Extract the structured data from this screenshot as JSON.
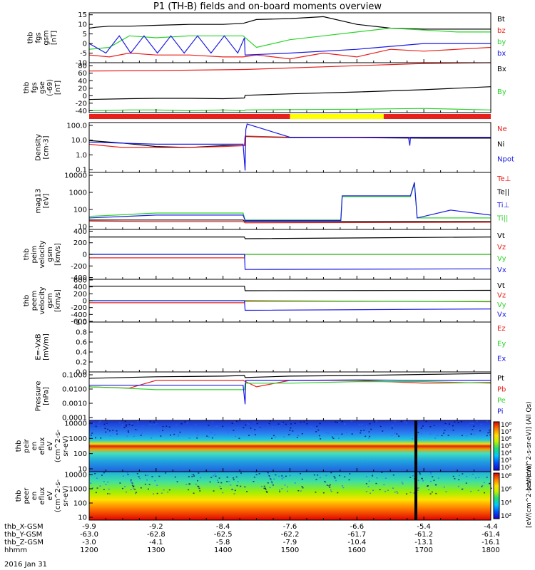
{
  "title": "P1 (TH-B) fields and on-board moments overview",
  "date_label": "2016 Jan 31",
  "colors": {
    "black": "#000000",
    "red": "#e8201c",
    "green": "#2ad32a",
    "blue": "#1a1ae6",
    "yellow": "#ffff00"
  },
  "chart_data": [
    {
      "type": "line",
      "panel": "fgs_gsm",
      "ylabel": [
        "thb",
        "fgs",
        "gsm",
        "[nT]"
      ],
      "yticks": [
        15,
        10,
        5,
        0,
        -5,
        -10
      ],
      "ylim": [
        -10,
        16
      ],
      "grid": false,
      "legend": [
        {
          "label": "Bt",
          "color": "black"
        },
        {
          "label": "bz",
          "color": "red"
        },
        {
          "label": "by",
          "color": "green"
        },
        {
          "label": "bx",
          "color": "blue"
        }
      ],
      "series": [
        {
          "name": "Bt",
          "color": "black",
          "x": [
            1200,
            1210,
            1230,
            1260,
            1300,
            1350,
            1400,
            1430,
            1450,
            1500,
            1550,
            1600,
            1650,
            1700,
            1750,
            1800
          ],
          "y": [
            8,
            8.5,
            9,
            9,
            9.5,
            10,
            10,
            10.5,
            12.5,
            13,
            14,
            10,
            8,
            7.5,
            7.5,
            7.5
          ]
        },
        {
          "name": "bz",
          "color": "red",
          "x": [
            1200,
            1230,
            1260,
            1300,
            1350,
            1400,
            1430,
            1450,
            1500,
            1550,
            1600,
            1650,
            1700,
            1750,
            1800
          ],
          "y": [
            -6,
            -7,
            -5,
            -6,
            -6,
            -7,
            -7,
            -6,
            -8,
            -5,
            -7,
            -3,
            -4,
            -3,
            -2
          ]
        },
        {
          "name": "by",
          "color": "green",
          "x": [
            1200,
            1230,
            1260,
            1300,
            1350,
            1400,
            1430,
            1450,
            1500,
            1550,
            1600,
            1650,
            1700,
            1750,
            1800
          ],
          "y": [
            -3,
            -2,
            4,
            3,
            4,
            4,
            4,
            -2,
            2,
            4,
            6,
            8,
            7,
            6,
            6
          ]
        },
        {
          "name": "bx",
          "color": "blue",
          "x": [
            1200,
            1225,
            1245,
            1262,
            1282,
            1302,
            1322,
            1342,
            1362,
            1382,
            1402,
            1422,
            1432,
            1433,
            1500,
            1600,
            1700,
            1800
          ],
          "y": [
            0,
            -5,
            4,
            -5,
            4,
            -5,
            4,
            -5,
            4,
            -5,
            4,
            -5,
            3,
            -6,
            -5,
            -3,
            0,
            0
          ]
        }
      ]
    },
    {
      "type": "line",
      "panel": "fgs_gse",
      "ylabel": [
        "thb",
        "fgs",
        "gse",
        "(-69)",
        "[nT]"
      ],
      "yticks": [
        80,
        60,
        40,
        20,
        0,
        -20,
        -40
      ],
      "ylim": [
        -45,
        88
      ],
      "grid": false,
      "legend": [
        {
          "label": "Bx",
          "color": "black"
        },
        {
          "label": "By",
          "color": "green"
        }
      ],
      "series": [
        {
          "name": "red",
          "color": "red",
          "x": [
            1200,
            1300,
            1433,
            1500,
            1600,
            1700,
            1800
          ],
          "y": [
            66,
            67,
            70,
            74,
            80,
            86,
            88
          ]
        },
        {
          "name": "Bx",
          "color": "black",
          "x": [
            1200,
            1260,
            1300,
            1350,
            1400,
            1432,
            1433,
            1500,
            1600,
            1700,
            1800
          ],
          "y": [
            -10,
            -8,
            -7,
            -7,
            -8,
            -6,
            1,
            5,
            10,
            16,
            24
          ]
        },
        {
          "name": "By",
          "color": "green",
          "x": [
            1200,
            1260,
            1300,
            1350,
            1400,
            1432,
            1433,
            1500,
            1600,
            1700,
            1800
          ],
          "y": [
            -40,
            -38,
            -38,
            -40,
            -38,
            -40,
            -38,
            -37,
            -36,
            -34,
            -38
          ]
        }
      ]
    },
    {
      "type": "line",
      "panel": "density",
      "ylabel": [
        "Density",
        "[cm-3]"
      ],
      "yticks": [
        "100.0",
        "10.0",
        "1.0",
        "0.1"
      ],
      "ylim": [
        0.06,
        150
      ],
      "log": true,
      "legend": [
        {
          "label": "Ne",
          "color": "red"
        },
        {
          "label": "Ni",
          "color": "black"
        },
        {
          "label": "Npot",
          "color": "blue"
        }
      ],
      "series": [
        {
          "name": "Ni",
          "color": "black",
          "x": [
            1200,
            1250,
            1300,
            1350,
            1400,
            1432,
            1433,
            1500,
            1600,
            1700,
            1800
          ],
          "y": [
            9,
            6,
            3.5,
            3,
            4,
            4,
            17,
            14,
            14,
            13,
            13
          ]
        },
        {
          "name": "Ne",
          "color": "red",
          "x": [
            1200,
            1250,
            1300,
            1350,
            1400,
            1432,
            1433,
            1500,
            1600,
            1700,
            1800
          ],
          "y": [
            5,
            3,
            3,
            3,
            3.5,
            4,
            18,
            15,
            14,
            15,
            15
          ]
        },
        {
          "name": "Npot",
          "color": "blue",
          "x": [
            1200,
            1300,
            1430,
            1433,
            1434,
            1436,
            1500,
            1600,
            1677,
            1679,
            1680,
            1800
          ],
          "y": [
            7,
            5,
            5,
            0.08,
            50,
            120,
            15,
            15,
            15,
            4,
            15,
            15
          ]
        }
      ]
    },
    {
      "type": "line",
      "panel": "temperature",
      "ylabel": [
        "mag13",
        "[eV]"
      ],
      "yticks": [
        "10000",
        "1000",
        "100",
        "10"
      ],
      "ylim": [
        4,
        12000
      ],
      "log": true,
      "legend": [
        {
          "label": "Te⊥",
          "color": "red"
        },
        {
          "label": "Te||",
          "color": "black"
        },
        {
          "label": "Ti⊥",
          "color": "blue"
        },
        {
          "label": "Ti||",
          "color": "green"
        }
      ],
      "series": [
        {
          "name": "Ti||",
          "color": "green",
          "x": [
            1200,
            1300,
            1430,
            1433,
            1500,
            1576,
            1578,
            1600,
            1680,
            1686,
            1690,
            1700,
            1800
          ],
          "y": [
            25,
            40,
            40,
            15,
            15,
            15,
            400,
            400,
            400,
            2500,
            20,
            20,
            20
          ]
        },
        {
          "name": "Ti⊥",
          "color": "blue",
          "x": [
            1200,
            1300,
            1430,
            1433,
            1500,
            1576,
            1578,
            1600,
            1680,
            1686,
            1690,
            1740,
            1800
          ],
          "y": [
            20,
            30,
            30,
            14,
            14,
            14,
            450,
            450,
            450,
            3000,
            20,
            60,
            30
          ]
        },
        {
          "name": "Te||",
          "color": "black",
          "x": [
            1200,
            1300,
            1430,
            1433,
            1800
          ],
          "y": [
            15,
            15,
            15,
            12,
            12
          ]
        },
        {
          "name": "Te⊥",
          "color": "red",
          "x": [
            1200,
            1300,
            1430,
            1433,
            1800
          ],
          "y": [
            13,
            12,
            12,
            10,
            11
          ]
        }
      ]
    },
    {
      "type": "line",
      "panel": "peim_velocity",
      "ylabel": [
        "thb",
        "peim",
        "velocity",
        "gsm",
        "[km/s]"
      ],
      "yticks": [
        400,
        200,
        0,
        -200,
        -400
      ],
      "ylim": [
        -430,
        430
      ],
      "grid": false,
      "legend": [
        {
          "label": "Vt",
          "color": "black"
        },
        {
          "label": "Vz",
          "color": "red"
        },
        {
          "label": "Vy",
          "color": "green"
        },
        {
          "label": "Vx",
          "color": "blue"
        }
      ],
      "series": [
        {
          "name": "Vt",
          "color": "black",
          "x": [
            1200,
            1432,
            1433,
            1800
          ],
          "y": [
            300,
            300,
            270,
            300
          ]
        },
        {
          "name": "Vz",
          "color": "red",
          "x": [
            1200,
            1432,
            1433,
            1800
          ],
          "y": [
            -60,
            -60,
            0,
            0
          ]
        },
        {
          "name": "Vy",
          "color": "green",
          "x": [
            1200,
            1432,
            1433,
            1800
          ],
          "y": [
            0,
            0,
            0,
            0
          ]
        },
        {
          "name": "Vx",
          "color": "blue",
          "x": [
            1200,
            1432,
            1433,
            1800
          ],
          "y": [
            0,
            0,
            -260,
            -250
          ]
        }
      ]
    },
    {
      "type": "line",
      "panel": "peem_velocity",
      "ylabel": [
        "thb",
        "peem",
        "velocity",
        "gsm",
        "[km/s]"
      ],
      "yticks": [
        600,
        400,
        200,
        0,
        -200,
        -400,
        -600
      ],
      "ylim": [
        -620,
        620
      ],
      "grid": false,
      "legend": [
        {
          "label": "Vt",
          "color": "black"
        },
        {
          "label": "Vz",
          "color": "red"
        },
        {
          "label": "Vy",
          "color": "green"
        },
        {
          "label": "Vx",
          "color": "blue"
        }
      ],
      "series": [
        {
          "name": "Vt",
          "color": "black",
          "x": [
            1200,
            1432,
            1433,
            1800
          ],
          "y": [
            420,
            420,
            290,
            300
          ]
        },
        {
          "name": "Vz",
          "color": "red",
          "x": [
            1200,
            1432,
            1433,
            1800
          ],
          "y": [
            -60,
            -60,
            0,
            -30
          ]
        },
        {
          "name": "Vy",
          "color": "green",
          "x": [
            1200,
            1432,
            1433,
            1800
          ],
          "y": [
            0,
            0,
            -20,
            -20
          ]
        },
        {
          "name": "Vx",
          "color": "blue",
          "x": [
            1200,
            1432,
            1433,
            1800
          ],
          "y": [
            0,
            0,
            -280,
            -240
          ]
        }
      ]
    },
    {
      "type": "line",
      "panel": "efield",
      "ylabel": [
        "E=-VxB",
        "[mV/m]"
      ],
      "yticks": [
        "1.0",
        "0.8",
        "0.6",
        "0.4",
        "0.2",
        "0.0"
      ],
      "ylim": [
        0,
        1
      ],
      "legend": [
        {
          "label": "Ez",
          "color": "red"
        },
        {
          "label": "Ey",
          "color": "green"
        },
        {
          "label": "Ex",
          "color": "blue"
        }
      ],
      "series": []
    },
    {
      "type": "line",
      "panel": "pressure",
      "ylabel": [
        "Pressure",
        "[nPa]"
      ],
      "yticks": [
        "0.1000",
        "0.0100",
        "0.0010",
        "0.0001"
      ],
      "ylim": [
        0.0001,
        0.1
      ],
      "log": true,
      "legend": [
        {
          "label": "Pt",
          "color": "black"
        },
        {
          "label": "Pb",
          "color": "red"
        },
        {
          "label": "Pe",
          "color": "green"
        },
        {
          "label": "Pi",
          "color": "blue"
        }
      ],
      "series": [
        {
          "name": "Pt",
          "color": "black",
          "x": [
            1200,
            1300,
            1400,
            1432,
            1433,
            1500,
            1600,
            1700,
            1800
          ],
          "y": [
            0.04,
            0.05,
            0.055,
            0.06,
            0.045,
            0.055,
            0.06,
            0.07,
            0.08
          ]
        },
        {
          "name": "Pb",
          "color": "red",
          "x": [
            1200,
            1260,
            1300,
            1430,
            1450,
            1500,
            1550,
            1600,
            1700,
            1800
          ],
          "y": [
            0.012,
            0.01,
            0.03,
            0.03,
            0.012,
            0.03,
            0.03,
            0.03,
            0.02,
            0.022
          ]
        },
        {
          "name": "Pe",
          "color": "green",
          "x": [
            1200,
            1250,
            1300,
            1432,
            1433,
            1500,
            1600,
            1700,
            1800
          ],
          "y": [
            0.012,
            0.01,
            0.008,
            0.008,
            0.02,
            0.02,
            0.025,
            0.025,
            0.02
          ]
        },
        {
          "name": "Pi",
          "color": "blue",
          "x": [
            1200,
            1300,
            1430,
            1433,
            1434,
            1500,
            1600,
            1700,
            1800
          ],
          "y": [
            0.015,
            0.015,
            0.015,
            0.001,
            0.03,
            0.03,
            0.032,
            0.03,
            0.03
          ]
        }
      ]
    },
    {
      "type": "heatmap",
      "panel": "peir_en_eflux",
      "ylabel": [
        "thb",
        "peir",
        "en",
        "eflux",
        "eV",
        "(cm^2-s-",
        "sr-eV)"
      ],
      "yticks": [
        "10000",
        "1000",
        "100",
        "10"
      ],
      "ylim": [
        5,
        30000
      ],
      "log": true
    },
    {
      "type": "heatmap",
      "panel": "peer_en_eflux",
      "ylabel": [
        "thb",
        "peer",
        "en",
        "eflux",
        "eV",
        "(cm^2-s-",
        "sr-eV)"
      ],
      "yticks": [
        "10000",
        "1000",
        "100",
        "10"
      ],
      "ylim": [
        5,
        30000
      ],
      "log": true
    },
    {
      "type": "table",
      "panel": "ephemeris",
      "x": [
        1200,
        1300,
        1400,
        1500,
        1600,
        1700,
        1800
      ],
      "xtick_positions": [
        1200,
        1291,
        1382,
        1473,
        1564,
        1655,
        1746,
        1800
      ],
      "rows": [
        {
          "label": "thb_X-GSM",
          "values": [
            "-9.9",
            "-9.2",
            "-8.4",
            "-7.6",
            "-6.6",
            "-5.4",
            "-4.4"
          ]
        },
        {
          "label": "thb_Y-GSM",
          "values": [
            "-63.0",
            "-62.8",
            "-62.5",
            "-62.2",
            "-61.7",
            "-61.2",
            "-61.4"
          ]
        },
        {
          "label": "thb_Z-GSM",
          "values": [
            "-3.0",
            "-4.1",
            "-5.8",
            "-7.9",
            "-10.4",
            "-13.1",
            "-16.1"
          ]
        },
        {
          "label": "hhmm",
          "values": [
            "1200",
            "1300",
            "1400",
            "1500",
            "1600",
            "1700",
            "1800"
          ]
        }
      ]
    }
  ],
  "colorbars": [
    {
      "label": "[eV/(cm^2-s-sr-eV)] (All Qs)",
      "ticks": [
        "10⁸",
        "10⁷",
        "10⁶",
        "10⁵",
        "10⁴",
        "10³",
        "10²"
      ]
    },
    {
      "label": "[eV/(cm^2-s-sr-eV)]",
      "ticks": [
        "10⁸",
        "10⁶",
        "10⁴",
        "10²"
      ]
    }
  ],
  "mode_bar": [
    {
      "from": 1200,
      "to": 1500,
      "color": "red"
    },
    {
      "from": 1500,
      "to": 1640,
      "color": "yellow"
    },
    {
      "from": 1640,
      "to": 1800,
      "color": "red"
    }
  ]
}
